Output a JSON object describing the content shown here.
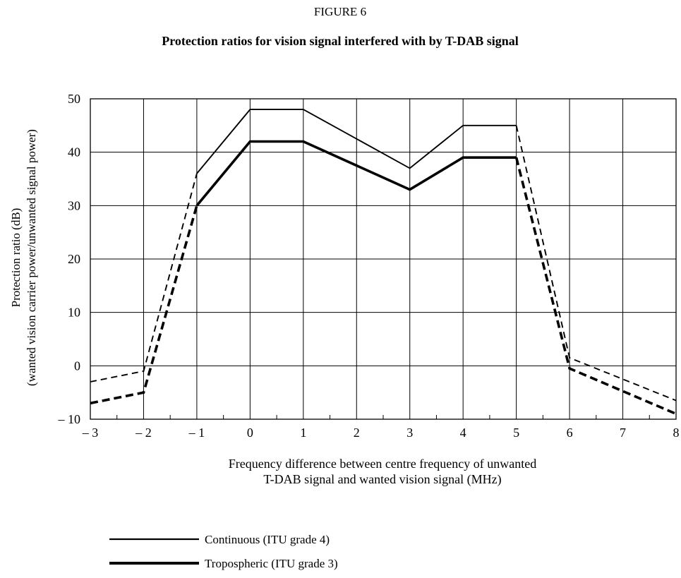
{
  "figure_label": "FIGURE 6",
  "chart_data": {
    "type": "line",
    "title": "Protection ratios for vision signal interfered with by T-DAB signal",
    "xlabel_lines": [
      "Frequency difference between centre frequency of unwanted",
      "T-DAB signal and wanted vision signal (MHz)"
    ],
    "ylabel_lines": [
      "Protection ratio (dB)",
      "(wanted vision carrier power/unwanted signal power)"
    ],
    "xlim": [
      -3,
      8
    ],
    "ylim": [
      -10,
      50
    ],
    "grid": true,
    "x_ticks": [
      -3,
      -2,
      -1,
      0,
      1,
      2,
      3,
      4,
      5,
      6,
      7,
      8
    ],
    "x_tick_labels": [
      "– 3",
      "– 2",
      "– 1",
      "0",
      "1",
      "2",
      "3",
      "4",
      "5",
      "6",
      "7",
      "8"
    ],
    "y_ticks": [
      -10,
      0,
      10,
      20,
      30,
      40,
      50
    ],
    "y_tick_labels": [
      "– 10",
      "0",
      "10",
      "20",
      "30",
      "40",
      "50"
    ],
    "series": [
      {
        "name": "Continuous (ITU grade 4)",
        "weight": "thin",
        "solid": [
          [
            -1,
            36
          ],
          [
            0,
            48
          ],
          [
            1,
            48
          ],
          [
            3,
            37
          ],
          [
            4,
            45
          ],
          [
            5,
            45
          ]
        ],
        "dashed": [
          [
            [
              -3,
              -3
            ],
            [
              -2,
              -1
            ],
            [
              -1,
              36
            ]
          ],
          [
            [
              5,
              45
            ],
            [
              6,
              1.5
            ],
            [
              8,
              -6.5
            ]
          ]
        ]
      },
      {
        "name": "Tropospheric (ITU grade 3)",
        "weight": "thick",
        "solid": [
          [
            -1,
            30
          ],
          [
            0,
            42
          ],
          [
            1,
            42
          ],
          [
            3,
            33
          ],
          [
            4,
            39
          ],
          [
            5,
            39
          ]
        ],
        "dashed": [
          [
            [
              -3,
              -7
            ],
            [
              -2,
              -5
            ],
            [
              -1,
              30
            ]
          ],
          [
            [
              5,
              39
            ],
            [
              6,
              -0.5
            ],
            [
              8,
              -9
            ]
          ]
        ]
      }
    ],
    "legend_placement": "bottom-left"
  }
}
